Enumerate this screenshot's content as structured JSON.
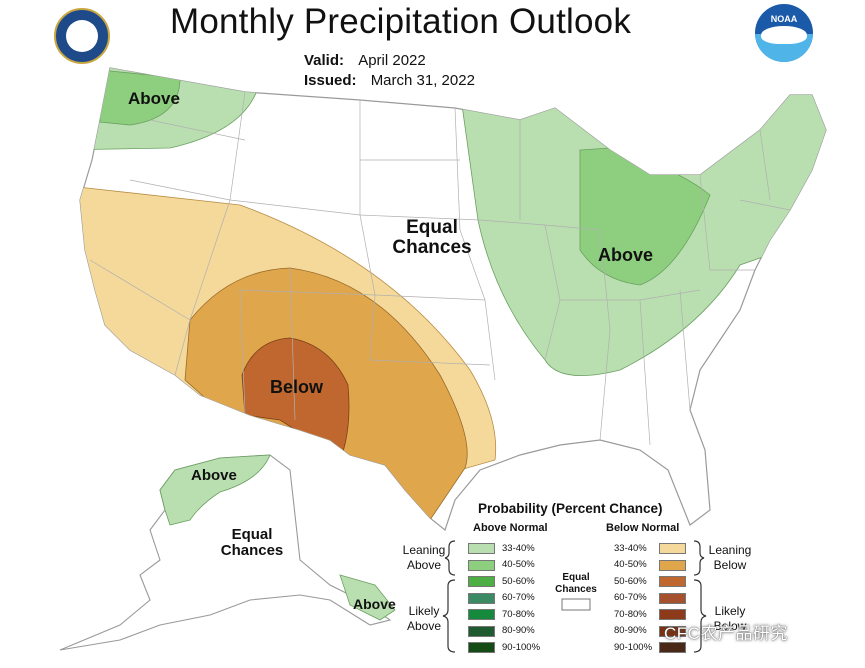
{
  "title": "Monthly Precipitation Outlook",
  "valid": {
    "label": "Valid:",
    "value": "April 2022"
  },
  "issued": {
    "label": "Issued:",
    "value": "March 31, 2022"
  },
  "logos": {
    "left": "department-of-commerce-seal",
    "right": "noaa-logo",
    "noaa_text": "NOAA"
  },
  "map_labels": {
    "pacific_nw": "Above",
    "great_lakes": "Above",
    "southwest": "Below",
    "plains_equal_1": "Equal",
    "plains_equal_2": "Chances",
    "alaska_above_north": "Above",
    "alaska_equal_1": "Equal",
    "alaska_equal_2": "Chances",
    "alaska_above_se": "Above"
  },
  "legend": {
    "title": "Probability (Percent Chance)",
    "above_header": "Above Normal",
    "below_header": "Below Normal",
    "leaning_above_1": "Leaning",
    "leaning_above_2": "Above",
    "likely_above_1": "Likely",
    "likely_above_2": "Above",
    "leaning_below_1": "Leaning",
    "leaning_below_2": "Below",
    "likely_below_1": "Likely",
    "likely_below_2": "Below",
    "equal_1": "Equal",
    "equal_2": "Chances",
    "above": [
      {
        "label": "33-40%",
        "color": "#b9dfb0"
      },
      {
        "label": "40-50%",
        "color": "#8ecf7f"
      },
      {
        "label": "50-60%",
        "color": "#4cae43"
      },
      {
        "label": "60-70%",
        "color": "#3c8a64"
      },
      {
        "label": "70-80%",
        "color": "#168a3c"
      },
      {
        "label": "80-90%",
        "color": "#205a30"
      },
      {
        "label": "90-100%",
        "color": "#144a14"
      }
    ],
    "below": [
      {
        "label": "33-40%",
        "color": "#f5d99a"
      },
      {
        "label": "40-50%",
        "color": "#dfa64c"
      },
      {
        "label": "50-60%",
        "color": "#c0672f"
      },
      {
        "label": "60-70%",
        "color": "#a5512d"
      },
      {
        "label": "70-80%",
        "color": "#8c3a1a"
      },
      {
        "label": "80-90%",
        "color": "#7a3010"
      },
      {
        "label": "90-100%",
        "color": "#4a2818"
      }
    ]
  },
  "watermark": "CFC农产品研究"
}
